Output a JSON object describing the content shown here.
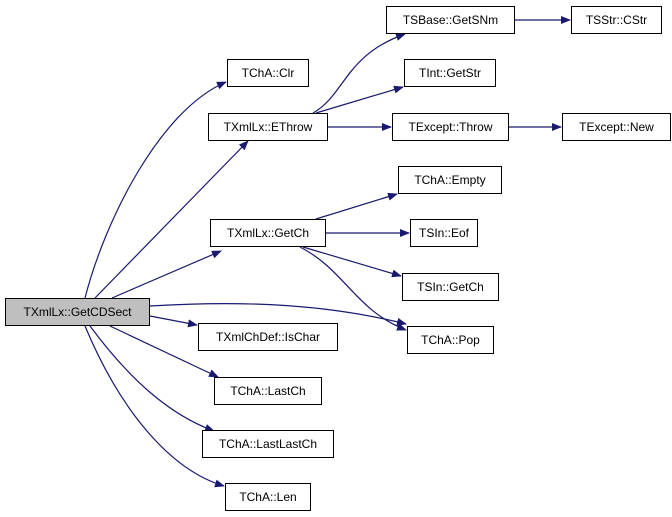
{
  "edge_color": "#191970",
  "root_fill": "#bfbfbf",
  "nodes": {
    "root": "TXmlLx::GetCDSect",
    "clr": "TChA::Clr",
    "ethrow": "TXmlLx::EThrow",
    "getch": "TXmlLx::GetCh",
    "ischar": "TXmlChDef::IsChar",
    "lastch": "TChA::LastCh",
    "lastlastch": "TChA::LastLastCh",
    "len": "TChA::Len",
    "pop": "TChA::Pop",
    "getsnm": "TSBase::GetSNm",
    "cstr": "TSStr::CStr",
    "getstr": "TInt::GetStr",
    "throw": "TExcept::Throw",
    "new": "TExcept::New",
    "empty": "TChA::Empty",
    "eof": "TSIn::Eof",
    "singetch": "TSIn::GetCh"
  },
  "edges": [
    [
      "root",
      "clr"
    ],
    [
      "root",
      "ethrow"
    ],
    [
      "root",
      "getch"
    ],
    [
      "root",
      "pop"
    ],
    [
      "root",
      "ischar"
    ],
    [
      "root",
      "lastch"
    ],
    [
      "root",
      "lastlastch"
    ],
    [
      "root",
      "len"
    ],
    [
      "ethrow",
      "getsnm"
    ],
    [
      "ethrow",
      "getstr"
    ],
    [
      "ethrow",
      "throw"
    ],
    [
      "throw",
      "new"
    ],
    [
      "getsnm",
      "cstr"
    ],
    [
      "getch",
      "empty"
    ],
    [
      "getch",
      "eof"
    ],
    [
      "getch",
      "singetch"
    ],
    [
      "getch",
      "pop"
    ]
  ]
}
